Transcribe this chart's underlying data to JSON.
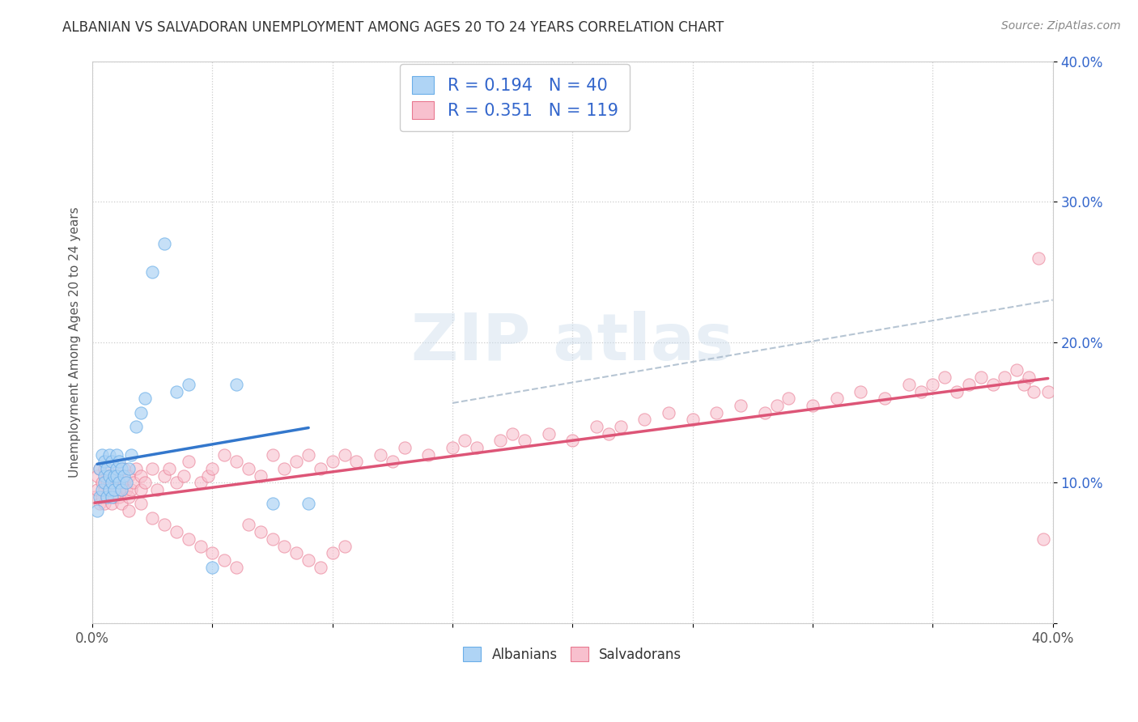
{
  "title": "ALBANIAN VS SALVADORAN UNEMPLOYMENT AMONG AGES 20 TO 24 YEARS CORRELATION CHART",
  "source": "Source: ZipAtlas.com",
  "ylabel": "Unemployment Among Ages 20 to 24 years",
  "xlim": [
    0.0,
    0.4
  ],
  "ylim": [
    0.0,
    0.4
  ],
  "albanians_fill": "#afd4f5",
  "albanians_edge": "#6aaee8",
  "salvadorans_fill": "#f8c0ce",
  "salvadorans_edge": "#e87890",
  "albanian_line_color": "#3377cc",
  "salvadoran_line_color": "#dd5577",
  "dash_line_color": "#aabbcc",
  "R_albanian": 0.194,
  "N_albanian": 40,
  "R_salvadoran": 0.351,
  "N_salvadoran": 119,
  "legend_label_albanians": "Albanians",
  "legend_label_salvadorans": "Salvadorans",
  "background_color": "#ffffff",
  "grid_color": "#cccccc",
  "title_color": "#333333",
  "source_color": "#888888",
  "ytick_color": "#3366cc",
  "xtick_color": "#555555",
  "watermark_color": "#ccdded",
  "alb_x": [
    0.002,
    0.003,
    0.003,
    0.004,
    0.004,
    0.005,
    0.005,
    0.005,
    0.006,
    0.006,
    0.007,
    0.007,
    0.007,
    0.008,
    0.008,
    0.008,
    0.009,
    0.009,
    0.01,
    0.01,
    0.01,
    0.011,
    0.011,
    0.012,
    0.012,
    0.013,
    0.014,
    0.015,
    0.016,
    0.018,
    0.02,
    0.022,
    0.025,
    0.03,
    0.035,
    0.04,
    0.05,
    0.06,
    0.075,
    0.09
  ],
  "alb_y": [
    0.08,
    0.09,
    0.11,
    0.095,
    0.12,
    0.105,
    0.115,
    0.1,
    0.09,
    0.11,
    0.095,
    0.105,
    0.12,
    0.09,
    0.1,
    0.115,
    0.105,
    0.095,
    0.11,
    0.105,
    0.12,
    0.1,
    0.115,
    0.095,
    0.11,
    0.105,
    0.1,
    0.11,
    0.12,
    0.14,
    0.15,
    0.16,
    0.25,
    0.27,
    0.165,
    0.17,
    0.04,
    0.17,
    0.085,
    0.085
  ],
  "sal_x": [
    0.001,
    0.002,
    0.002,
    0.003,
    0.003,
    0.004,
    0.004,
    0.005,
    0.005,
    0.005,
    0.006,
    0.006,
    0.007,
    0.007,
    0.008,
    0.008,
    0.009,
    0.009,
    0.01,
    0.01,
    0.011,
    0.011,
    0.012,
    0.012,
    0.013,
    0.013,
    0.014,
    0.015,
    0.015,
    0.016,
    0.017,
    0.018,
    0.02,
    0.02,
    0.022,
    0.025,
    0.027,
    0.03,
    0.032,
    0.035,
    0.038,
    0.04,
    0.045,
    0.048,
    0.05,
    0.055,
    0.06,
    0.065,
    0.07,
    0.075,
    0.08,
    0.085,
    0.09,
    0.095,
    0.1,
    0.105,
    0.11,
    0.12,
    0.125,
    0.13,
    0.14,
    0.15,
    0.155,
    0.16,
    0.17,
    0.175,
    0.18,
    0.19,
    0.2,
    0.21,
    0.215,
    0.22,
    0.23,
    0.24,
    0.25,
    0.26,
    0.27,
    0.28,
    0.285,
    0.29,
    0.3,
    0.31,
    0.32,
    0.33,
    0.34,
    0.345,
    0.35,
    0.355,
    0.36,
    0.365,
    0.37,
    0.375,
    0.38,
    0.385,
    0.388,
    0.39,
    0.392,
    0.394,
    0.396,
    0.398,
    0.015,
    0.02,
    0.025,
    0.03,
    0.035,
    0.04,
    0.045,
    0.05,
    0.055,
    0.06,
    0.065,
    0.07,
    0.075,
    0.08,
    0.085,
    0.09,
    0.095,
    0.1,
    0.105
  ],
  "sal_y": [
    0.09,
    0.095,
    0.105,
    0.085,
    0.11,
    0.09,
    0.1,
    0.095,
    0.11,
    0.085,
    0.09,
    0.1,
    0.095,
    0.105,
    0.085,
    0.1,
    0.09,
    0.105,
    0.095,
    0.11,
    0.09,
    0.1,
    0.085,
    0.095,
    0.1,
    0.11,
    0.095,
    0.09,
    0.105,
    0.095,
    0.1,
    0.11,
    0.095,
    0.105,
    0.1,
    0.11,
    0.095,
    0.105,
    0.11,
    0.1,
    0.105,
    0.115,
    0.1,
    0.105,
    0.11,
    0.12,
    0.115,
    0.11,
    0.105,
    0.12,
    0.11,
    0.115,
    0.12,
    0.11,
    0.115,
    0.12,
    0.115,
    0.12,
    0.115,
    0.125,
    0.12,
    0.125,
    0.13,
    0.125,
    0.13,
    0.135,
    0.13,
    0.135,
    0.13,
    0.14,
    0.135,
    0.14,
    0.145,
    0.15,
    0.145,
    0.15,
    0.155,
    0.15,
    0.155,
    0.16,
    0.155,
    0.16,
    0.165,
    0.16,
    0.17,
    0.165,
    0.17,
    0.175,
    0.165,
    0.17,
    0.175,
    0.17,
    0.175,
    0.18,
    0.17,
    0.175,
    0.165,
    0.26,
    0.06,
    0.165,
    0.08,
    0.085,
    0.075,
    0.07,
    0.065,
    0.06,
    0.055,
    0.05,
    0.045,
    0.04,
    0.07,
    0.065,
    0.06,
    0.055,
    0.05,
    0.045,
    0.04,
    0.05,
    0.055
  ]
}
